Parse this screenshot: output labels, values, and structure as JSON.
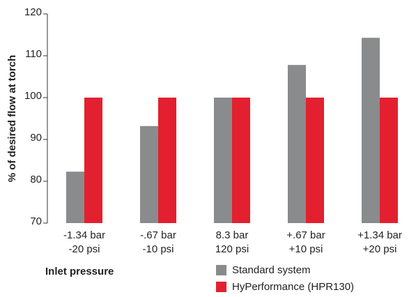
{
  "chart_data": {
    "type": "bar",
    "y_label": "% of desired flow at torch",
    "x_label": "Inlet pressure",
    "categories": [
      [
        "-1.34 bar",
        "-20 psi"
      ],
      [
        "-.67 bar",
        "-10 psi"
      ],
      [
        "8.3 bar",
        "120 psi"
      ],
      [
        "+.67 bar",
        "+10 psi"
      ],
      [
        "+1.34 bar",
        "+20 psi"
      ]
    ],
    "series": [
      {
        "name": "Standard system",
        "color": "#8a8b8d",
        "values": [
          82.3,
          93.2,
          100,
          107.8,
          114.3
        ]
      },
      {
        "name": "HyPerformance (HPR130)",
        "color": "#e3202f",
        "values": [
          100,
          100,
          100,
          100,
          100
        ]
      }
    ],
    "ylim": [
      70,
      120
    ],
    "yticks": [
      70,
      80,
      90,
      100,
      110,
      120
    ],
    "legend": "bottom-right"
  }
}
